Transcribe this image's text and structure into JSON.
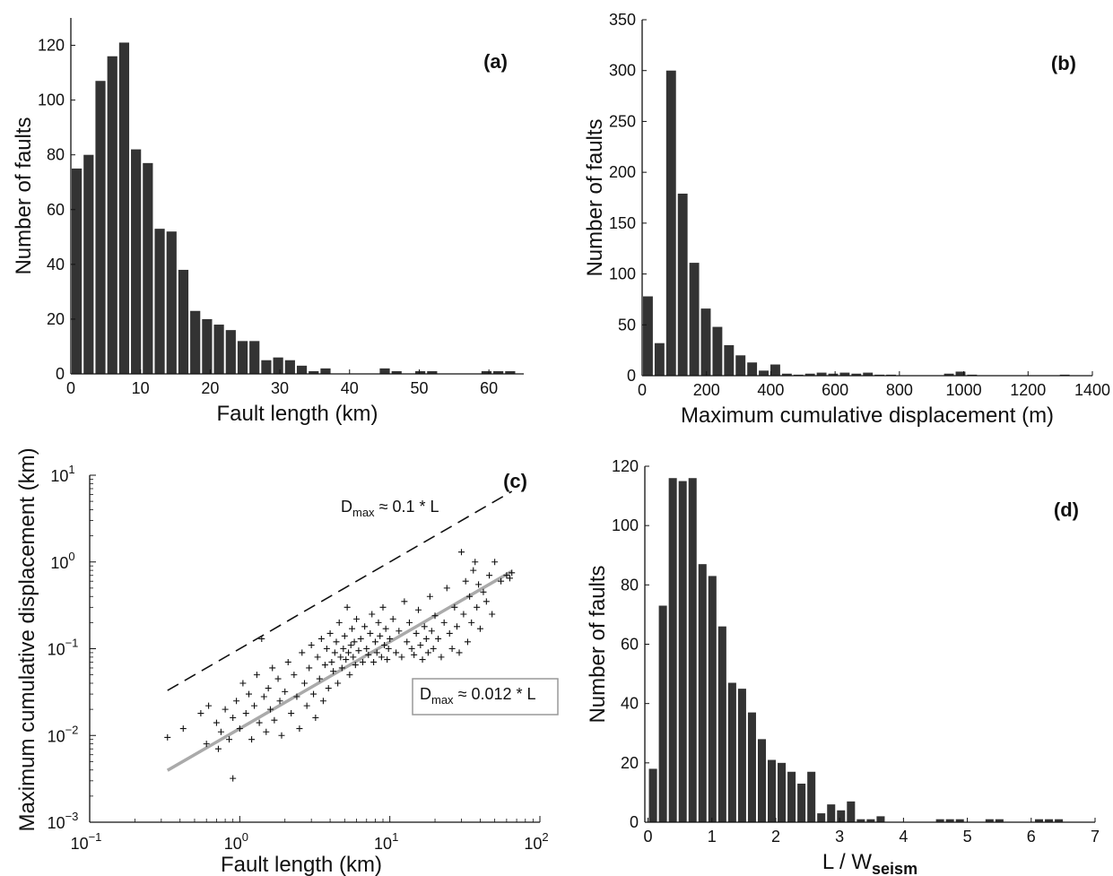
{
  "chart_data": [
    {
      "id": "a",
      "type": "bar",
      "panel_label": "(a)",
      "xlabel": "Fault length (km)",
      "ylabel": "Number of faults",
      "xlim": [
        0,
        65
      ],
      "ylim": [
        0,
        130
      ],
      "xticks": [
        0,
        10,
        20,
        30,
        40,
        50,
        60
      ],
      "yticks": [
        0,
        20,
        40,
        60,
        80,
        100,
        120
      ],
      "bin_width": 1.7,
      "bins": [
        {
          "x": 0.85,
          "y": 75
        },
        {
          "x": 2.55,
          "y": 80
        },
        {
          "x": 4.25,
          "y": 107
        },
        {
          "x": 5.95,
          "y": 116
        },
        {
          "x": 7.65,
          "y": 121
        },
        {
          "x": 9.35,
          "y": 82
        },
        {
          "x": 11.05,
          "y": 77
        },
        {
          "x": 12.75,
          "y": 53
        },
        {
          "x": 14.45,
          "y": 52
        },
        {
          "x": 16.15,
          "y": 38
        },
        {
          "x": 17.85,
          "y": 23
        },
        {
          "x": 19.55,
          "y": 20
        },
        {
          "x": 21.25,
          "y": 18
        },
        {
          "x": 22.95,
          "y": 16
        },
        {
          "x": 24.65,
          "y": 12
        },
        {
          "x": 26.35,
          "y": 12
        },
        {
          "x": 28.05,
          "y": 5
        },
        {
          "x": 29.75,
          "y": 6
        },
        {
          "x": 31.45,
          "y": 5
        },
        {
          "x": 33.15,
          "y": 3
        },
        {
          "x": 34.85,
          "y": 1
        },
        {
          "x": 36.55,
          "y": 2
        },
        {
          "x": 45.05,
          "y": 2
        },
        {
          "x": 46.75,
          "y": 1
        },
        {
          "x": 50.15,
          "y": 1
        },
        {
          "x": 51.85,
          "y": 1
        },
        {
          "x": 59.65,
          "y": 1
        },
        {
          "x": 61.35,
          "y": 1
        },
        {
          "x": 63.05,
          "y": 1
        }
      ]
    },
    {
      "id": "b",
      "type": "bar",
      "panel_label": "(b)",
      "xlabel": "Maximum cumulative displacement (m)",
      "ylabel": "Number of faults",
      "xlim": [
        0,
        1400
      ],
      "ylim": [
        0,
        350
      ],
      "xticks": [
        0,
        200,
        400,
        600,
        800,
        1000,
        1200,
        1400
      ],
      "yticks": [
        0,
        50,
        100,
        150,
        200,
        250,
        300,
        350
      ],
      "bin_width": 36,
      "bins": [
        {
          "x": 18,
          "y": 78
        },
        {
          "x": 54,
          "y": 32
        },
        {
          "x": 90,
          "y": 300
        },
        {
          "x": 126,
          "y": 179
        },
        {
          "x": 162,
          "y": 111
        },
        {
          "x": 198,
          "y": 66
        },
        {
          "x": 234,
          "y": 48
        },
        {
          "x": 270,
          "y": 30
        },
        {
          "x": 306,
          "y": 20
        },
        {
          "x": 342,
          "y": 13
        },
        {
          "x": 378,
          "y": 5
        },
        {
          "x": 414,
          "y": 11
        },
        {
          "x": 450,
          "y": 2
        },
        {
          "x": 486,
          "y": 1
        },
        {
          "x": 522,
          "y": 2
        },
        {
          "x": 558,
          "y": 3
        },
        {
          "x": 594,
          "y": 2
        },
        {
          "x": 630,
          "y": 3
        },
        {
          "x": 666,
          "y": 2
        },
        {
          "x": 702,
          "y": 3
        },
        {
          "x": 738,
          "y": 1
        },
        {
          "x": 774,
          "y": 1
        },
        {
          "x": 954,
          "y": 2
        },
        {
          "x": 990,
          "y": 4
        },
        {
          "x": 1026,
          "y": 1
        },
        {
          "x": 1314,
          "y": 1
        }
      ]
    },
    {
      "id": "c",
      "type": "scatter",
      "panel_label": "(c)",
      "xlabel": "Fault length (km)",
      "ylabel": "Maximum cumulative displacement (km)",
      "xscale": "log",
      "yscale": "log",
      "xlim": [
        0.1,
        100
      ],
      "ylim": [
        0.001,
        10
      ],
      "xtick_labels": [
        {
          "base": "10",
          "exp": "−1"
        },
        {
          "base": "10",
          "exp": "0"
        },
        {
          "base": "10",
          "exp": "1"
        },
        {
          "base": "10",
          "exp": "2"
        }
      ],
      "ytick_labels": [
        {
          "base": "10",
          "exp": "−3"
        },
        {
          "base": "10",
          "exp": "−2"
        },
        {
          "base": "10",
          "exp": "−1"
        },
        {
          "base": "10",
          "exp": "0"
        },
        {
          "base": "10",
          "exp": "1"
        }
      ],
      "marker": "+",
      "lines": [
        {
          "style": "dashed",
          "color": "#111111",
          "coef": 0.1,
          "x_range": [
            0.33,
            65
          ],
          "annotation": {
            "main": "D",
            "sub": "max",
            "rest": " ≈ 0.1 * L"
          }
        },
        {
          "style": "solid",
          "color": "#aaaaaa",
          "coef": 0.012,
          "x_range": [
            0.33,
            65
          ],
          "annotation": {
            "main": "D",
            "sub": "max",
            "rest": " ≈ 0.012 * L",
            "boxed": true
          }
        }
      ],
      "points": [
        [
          0.33,
          0.0095
        ],
        [
          0.42,
          0.012
        ],
        [
          0.55,
          0.018
        ],
        [
          0.6,
          0.008
        ],
        [
          0.62,
          0.022
        ],
        [
          0.7,
          0.014
        ],
        [
          0.72,
          0.007
        ],
        [
          0.75,
          0.011
        ],
        [
          0.8,
          0.02
        ],
        [
          0.85,
          0.009
        ],
        [
          0.9,
          0.0032
        ],
        [
          0.9,
          0.016
        ],
        [
          0.95,
          0.025
        ],
        [
          1.0,
          0.012
        ],
        [
          1.05,
          0.04
        ],
        [
          1.1,
          0.018
        ],
        [
          1.15,
          0.03
        ],
        [
          1.2,
          0.009
        ],
        [
          1.25,
          0.022
        ],
        [
          1.3,
          0.05
        ],
        [
          1.35,
          0.014
        ],
        [
          1.4,
          0.13
        ],
        [
          1.45,
          0.028
        ],
        [
          1.5,
          0.011
        ],
        [
          1.55,
          0.035
        ],
        [
          1.6,
          0.02
        ],
        [
          1.65,
          0.06
        ],
        [
          1.7,
          0.015
        ],
        [
          1.8,
          0.045
        ],
        [
          1.85,
          0.025
        ],
        [
          1.9,
          0.01
        ],
        [
          2.0,
          0.032
        ],
        [
          2.1,
          0.07
        ],
        [
          2.2,
          0.018
        ],
        [
          2.3,
          0.05
        ],
        [
          2.4,
          0.028
        ],
        [
          2.5,
          0.012
        ],
        [
          2.6,
          0.09
        ],
        [
          2.7,
          0.04
        ],
        [
          2.8,
          0.022
        ],
        [
          2.9,
          0.06
        ],
        [
          3.0,
          0.11
        ],
        [
          3.1,
          0.03
        ],
        [
          3.2,
          0.016
        ],
        [
          3.3,
          0.08
        ],
        [
          3.4,
          0.045
        ],
        [
          3.5,
          0.13
        ],
        [
          3.6,
          0.025
        ],
        [
          3.7,
          0.065
        ],
        [
          3.8,
          0.1
        ],
        [
          3.9,
          0.035
        ],
        [
          4.0,
          0.15
        ],
        [
          4.1,
          0.07
        ],
        [
          4.2,
          0.055
        ],
        [
          4.3,
          0.09
        ],
        [
          4.4,
          0.12
        ],
        [
          4.5,
          0.04
        ],
        [
          4.6,
          0.2
        ],
        [
          4.7,
          0.08
        ],
        [
          4.8,
          0.06
        ],
        [
          4.9,
          0.1
        ],
        [
          5.0,
          0.14
        ],
        [
          5.1,
          0.075
        ],
        [
          5.2,
          0.3
        ],
        [
          5.3,
          0.09
        ],
        [
          5.4,
          0.05
        ],
        [
          5.5,
          0.11
        ],
        [
          5.6,
          0.17
        ],
        [
          5.7,
          0.08
        ],
        [
          5.8,
          0.12
        ],
        [
          5.9,
          0.065
        ],
        [
          6.0,
          0.22
        ],
        [
          6.2,
          0.095
        ],
        [
          6.4,
          0.13
        ],
        [
          6.6,
          0.07
        ],
        [
          6.8,
          0.18
        ],
        [
          7.0,
          0.1
        ],
        [
          7.2,
          0.085
        ],
        [
          7.4,
          0.15
        ],
        [
          7.6,
          0.25
        ],
        [
          7.8,
          0.07
        ],
        [
          8.0,
          0.12
        ],
        [
          8.2,
          0.09
        ],
        [
          8.4,
          0.2
        ],
        [
          8.6,
          0.14
        ],
        [
          8.8,
          0.08
        ],
        [
          9.0,
          0.3
        ],
        [
          9.2,
          0.11
        ],
        [
          9.4,
          0.17
        ],
        [
          9.6,
          0.075
        ],
        [
          9.8,
          0.1
        ],
        [
          10.0,
          0.13
        ],
        [
          10.5,
          0.22
        ],
        [
          11.0,
          0.09
        ],
        [
          11.5,
          0.16
        ],
        [
          12.0,
          0.08
        ],
        [
          12.5,
          0.35
        ],
        [
          13.0,
          0.12
        ],
        [
          13.5,
          0.2
        ],
        [
          14.0,
          0.1
        ],
        [
          14.5,
          0.085
        ],
        [
          15.0,
          0.15
        ],
        [
          15.5,
          0.28
        ],
        [
          16.0,
          0.11
        ],
        [
          16.5,
          0.075
        ],
        [
          17.0,
          0.18
        ],
        [
          17.5,
          0.13
        ],
        [
          18.0,
          0.09
        ],
        [
          18.5,
          0.4
        ],
        [
          19.0,
          0.16
        ],
        [
          19.5,
          0.1
        ],
        [
          20.0,
          0.24
        ],
        [
          21.0,
          0.13
        ],
        [
          22.0,
          0.08
        ],
        [
          23.0,
          0.2
        ],
        [
          24.0,
          0.5
        ],
        [
          25.0,
          0.15
        ],
        [
          26.0,
          0.1
        ],
        [
          27.0,
          0.3
        ],
        [
          28.0,
          0.18
        ],
        [
          29.0,
          0.09
        ],
        [
          30.0,
          1.3
        ],
        [
          31.0,
          0.25
        ],
        [
          32.0,
          0.6
        ],
        [
          33.0,
          0.12
        ],
        [
          34.0,
          0.4
        ],
        [
          35.0,
          0.2
        ],
        [
          36.0,
          0.8
        ],
        [
          37.0,
          1.0
        ],
        [
          38.0,
          0.3
        ],
        [
          39.0,
          0.55
        ],
        [
          40.0,
          0.17
        ],
        [
          42.0,
          0.45
        ],
        [
          44.0,
          0.35
        ],
        [
          46.0,
          0.7
        ],
        [
          48.0,
          0.25
        ],
        [
          50.0,
          1.0
        ],
        [
          55.0,
          0.6
        ],
        [
          60.0,
          0.7
        ],
        [
          63.0,
          0.65
        ],
        [
          65.0,
          0.75
        ]
      ]
    },
    {
      "id": "d",
      "type": "bar",
      "panel_label": "(d)",
      "xlabel_main": "L / W",
      "xlabel_sub": "seism",
      "ylabel": "Number of faults",
      "xlim": [
        -0.05,
        7
      ],
      "ylim": [
        0,
        120
      ],
      "xticks": [
        0,
        1,
        2,
        3,
        4,
        5,
        6,
        7
      ],
      "yticks": [
        0,
        20,
        40,
        60,
        80,
        100,
        120
      ],
      "bin_width": 0.155,
      "bins": [
        {
          "x": 0.0775,
          "y": 18
        },
        {
          "x": 0.2325,
          "y": 73
        },
        {
          "x": 0.3875,
          "y": 116
        },
        {
          "x": 0.5425,
          "y": 115
        },
        {
          "x": 0.6975,
          "y": 116
        },
        {
          "x": 0.8525,
          "y": 87
        },
        {
          "x": 1.0075,
          "y": 83
        },
        {
          "x": 1.1625,
          "y": 66
        },
        {
          "x": 1.3175,
          "y": 47
        },
        {
          "x": 1.4725,
          "y": 45
        },
        {
          "x": 1.6275,
          "y": 37
        },
        {
          "x": 1.7825,
          "y": 28
        },
        {
          "x": 1.9375,
          "y": 21
        },
        {
          "x": 2.0925,
          "y": 20
        },
        {
          "x": 2.2475,
          "y": 17
        },
        {
          "x": 2.4025,
          "y": 13
        },
        {
          "x": 2.5575,
          "y": 17
        },
        {
          "x": 2.7125,
          "y": 3
        },
        {
          "x": 2.8675,
          "y": 6
        },
        {
          "x": 3.0225,
          "y": 4
        },
        {
          "x": 3.1775,
          "y": 7
        },
        {
          "x": 3.3325,
          "y": 1
        },
        {
          "x": 3.4875,
          "y": 1
        },
        {
          "x": 3.6425,
          "y": 2
        },
        {
          "x": 4.5725,
          "y": 1
        },
        {
          "x": 4.7275,
          "y": 1
        },
        {
          "x": 4.8825,
          "y": 1
        },
        {
          "x": 5.3475,
          "y": 1
        },
        {
          "x": 5.5025,
          "y": 1
        },
        {
          "x": 6.1225,
          "y": 1
        },
        {
          "x": 6.2775,
          "y": 1
        },
        {
          "x": 6.4325,
          "y": 1
        }
      ]
    }
  ]
}
